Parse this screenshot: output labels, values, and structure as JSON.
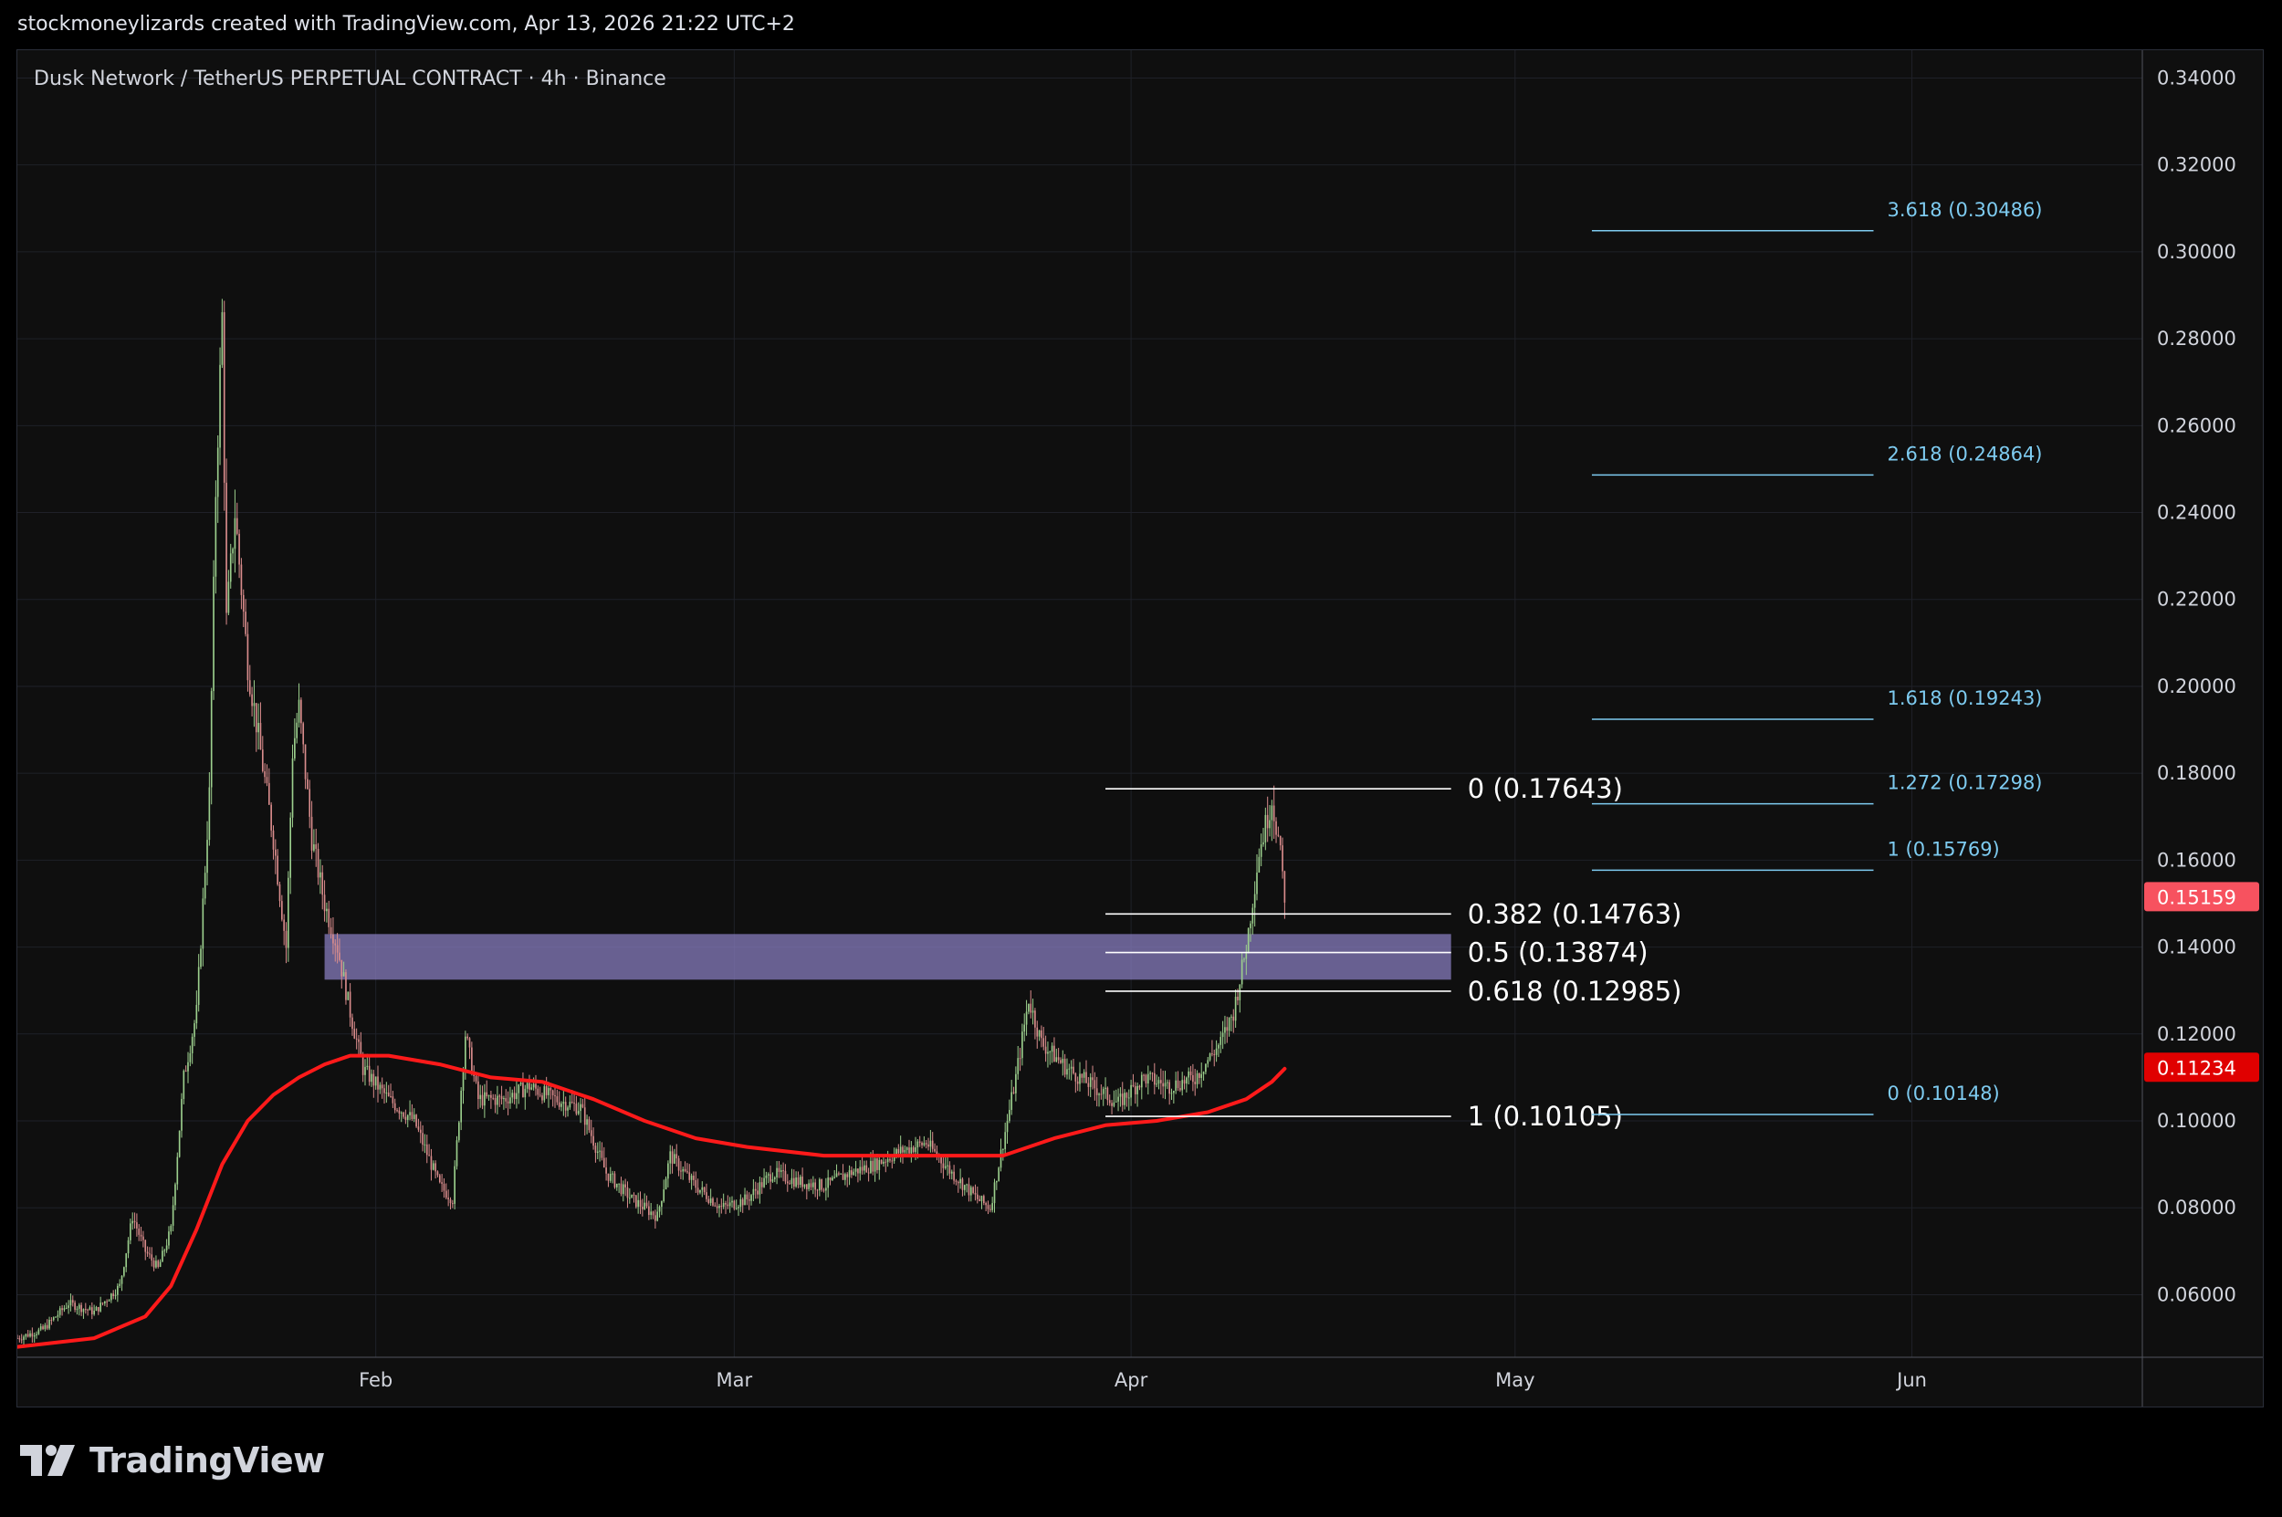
{
  "header": {
    "attribution": "stockmoneylizards created with TradingView.com, Apr 13, 2026 21:22 UTC+2"
  },
  "brand": {
    "name": "TradingView",
    "logo_icon": "tradingview-logo-icon"
  },
  "colors": {
    "background": "#0f0f0f",
    "up_candle": "#9ccf8d",
    "down_candle": "#d98c8c",
    "ma_line": "#ff1a1a",
    "zone": "#8a7fc4",
    "fib_retracement": "#ffffff",
    "fib_extension": "#7ecbf0",
    "price_label_current": "#f7525f",
    "price_label_ma": "#e00000"
  },
  "chart_data": {
    "type": "candlestick",
    "title": "Dusk Network / TetherUS PERPETUAL CONTRACT · 4h · Binance",
    "x_axis": {
      "ticks": [
        {
          "label": "Feb",
          "date": "2026-02-01"
        },
        {
          "label": "Mar",
          "date": "2026-03-01"
        },
        {
          "label": "Apr",
          "date": "2026-04-01"
        },
        {
          "label": "May",
          "date": "2026-05-01"
        },
        {
          "label": "Jun",
          "date": "2026-06-01"
        }
      ],
      "range": [
        "2026-01-04",
        "2026-06-19"
      ]
    },
    "y_axis": {
      "ticks": [
        "0.34000",
        "0.32000",
        "0.30000",
        "0.28000",
        "0.26000",
        "0.24000",
        "0.22000",
        "0.20000",
        "0.18000",
        "0.16000",
        "0.14000",
        "0.12000",
        "0.10000",
        "0.08000",
        "0.06000"
      ],
      "range": [
        0.0456,
        0.3464
      ],
      "side": "right"
    },
    "grid": true,
    "price_path": [
      [
        "2026-01-04",
        0.05
      ],
      [
        "2026-01-06",
        0.052
      ],
      [
        "2026-01-08",
        0.058
      ],
      [
        "2026-01-10",
        0.056
      ],
      [
        "2026-01-12",
        0.062
      ],
      [
        "2026-01-13",
        0.078
      ],
      [
        "2026-01-14",
        0.07
      ],
      [
        "2026-01-15",
        0.066
      ],
      [
        "2026-01-16",
        0.075
      ],
      [
        "2026-01-17",
        0.11
      ],
      [
        "2026-01-18",
        0.125
      ],
      [
        "2026-01-19",
        0.175
      ],
      [
        "2026-01-19T12:00",
        0.245
      ],
      [
        "2026-01-20",
        0.285
      ],
      [
        "2026-01-20T08:00",
        0.215
      ],
      [
        "2026-01-21",
        0.24
      ],
      [
        "2026-01-22",
        0.205
      ],
      [
        "2026-01-23",
        0.185
      ],
      [
        "2026-01-24",
        0.165
      ],
      [
        "2026-01-25",
        0.14
      ],
      [
        "2026-01-25T12:00",
        0.185
      ],
      [
        "2026-01-26",
        0.195
      ],
      [
        "2026-01-27",
        0.165
      ],
      [
        "2026-01-28",
        0.15
      ],
      [
        "2026-01-29",
        0.14
      ],
      [
        "2026-01-30",
        0.125
      ],
      [
        "2026-01-31",
        0.112
      ],
      [
        "2026-02-02",
        0.105
      ],
      [
        "2026-02-04",
        0.1
      ],
      [
        "2026-02-06",
        0.085
      ],
      [
        "2026-02-07",
        0.082
      ],
      [
        "2026-02-08",
        0.12
      ],
      [
        "2026-02-09",
        0.105
      ],
      [
        "2026-02-11",
        0.105
      ],
      [
        "2026-02-13",
        0.108
      ],
      [
        "2026-02-15",
        0.105
      ],
      [
        "2026-02-17",
        0.103
      ],
      [
        "2026-02-19",
        0.088
      ],
      [
        "2026-02-21",
        0.082
      ],
      [
        "2026-02-23",
        0.078
      ],
      [
        "2026-02-24",
        0.092
      ],
      [
        "2026-02-26",
        0.085
      ],
      [
        "2026-02-28",
        0.08
      ],
      [
        "2026-03-02",
        0.082
      ],
      [
        "2026-03-04",
        0.088
      ],
      [
        "2026-03-06",
        0.086
      ],
      [
        "2026-03-08",
        0.085
      ],
      [
        "2026-03-10",
        0.088
      ],
      [
        "2026-03-12",
        0.09
      ],
      [
        "2026-03-14",
        0.093
      ],
      [
        "2026-03-16",
        0.095
      ],
      [
        "2026-03-18",
        0.088
      ],
      [
        "2026-03-20",
        0.082
      ],
      [
        "2026-03-21",
        0.08
      ],
      [
        "2026-03-22",
        0.095
      ],
      [
        "2026-03-23",
        0.11
      ],
      [
        "2026-03-24",
        0.128
      ],
      [
        "2026-03-25",
        0.118
      ],
      [
        "2026-03-27",
        0.112
      ],
      [
        "2026-03-29",
        0.108
      ],
      [
        "2026-03-31",
        0.104
      ],
      [
        "2026-04-02",
        0.11
      ],
      [
        "2026-04-04",
        0.108
      ],
      [
        "2026-04-06",
        0.11
      ],
      [
        "2026-04-08",
        0.118
      ],
      [
        "2026-04-09",
        0.125
      ],
      [
        "2026-04-10",
        0.14
      ],
      [
        "2026-04-11",
        0.162
      ],
      [
        "2026-04-12",
        0.174
      ],
      [
        "2026-04-12T12:00",
        0.165
      ],
      [
        "2026-04-13",
        0.152
      ]
    ],
    "moving_average": [
      [
        "2026-01-04",
        0.048
      ],
      [
        "2026-01-10",
        0.05
      ],
      [
        "2026-01-14",
        0.055
      ],
      [
        "2026-01-16",
        0.062
      ],
      [
        "2026-01-18",
        0.075
      ],
      [
        "2026-01-20",
        0.09
      ],
      [
        "2026-01-22",
        0.1
      ],
      [
        "2026-01-24",
        0.106
      ],
      [
        "2026-01-26",
        0.11
      ],
      [
        "2026-01-28",
        0.113
      ],
      [
        "2026-01-30",
        0.115
      ],
      [
        "2026-02-02",
        0.115
      ],
      [
        "2026-02-06",
        0.113
      ],
      [
        "2026-02-10",
        0.11
      ],
      [
        "2026-02-14",
        0.109
      ],
      [
        "2026-02-18",
        0.105
      ],
      [
        "2026-02-22",
        0.1
      ],
      [
        "2026-02-26",
        0.096
      ],
      [
        "2026-03-02",
        0.094
      ],
      [
        "2026-03-08",
        0.092
      ],
      [
        "2026-03-14",
        0.092
      ],
      [
        "2026-03-18",
        0.092
      ],
      [
        "2026-03-22",
        0.092
      ],
      [
        "2026-03-26",
        0.096
      ],
      [
        "2026-03-30",
        0.099
      ],
      [
        "2026-04-03",
        0.1
      ],
      [
        "2026-04-07",
        0.102
      ],
      [
        "2026-04-10",
        0.105
      ],
      [
        "2026-04-12",
        0.109
      ],
      [
        "2026-04-13",
        0.112
      ]
    ],
    "zone": {
      "from": "2026-01-28",
      "to": "2026-04-26",
      "low": 0.1325,
      "high": 0.143
    },
    "fib_retracement": {
      "from": "2026-03-30",
      "to": "2026-04-26",
      "levels": [
        {
          "label": "0 (0.17643)",
          "value": 0.17643
        },
        {
          "label": "0.382 (0.14763)",
          "value": 0.14763
        },
        {
          "label": "0.5 (0.13874)",
          "value": 0.13874
        },
        {
          "label": "0.618 (0.12985)",
          "value": 0.12985
        },
        {
          "label": "1 (0.10105)",
          "value": 0.10105
        }
      ]
    },
    "fib_extension": {
      "from": "2026-05-07",
      "to": "2026-05-29",
      "levels": [
        {
          "label": "3.618 (0.30486)",
          "value": 0.30486
        },
        {
          "label": "2.618 (0.24864)",
          "value": 0.24864
        },
        {
          "label": "1.618 (0.19243)",
          "value": 0.19243
        },
        {
          "label": "1.272 (0.17298)",
          "value": 0.17298
        },
        {
          "label": "1 (0.15769)",
          "value": 0.15769
        },
        {
          "label": "0 (0.10148)",
          "value": 0.10148
        }
      ]
    },
    "price_labels": [
      {
        "text": "0.15159",
        "value": 0.15159,
        "kind": "current"
      },
      {
        "text": "0.11234",
        "value": 0.11234,
        "kind": "ma"
      }
    ]
  }
}
